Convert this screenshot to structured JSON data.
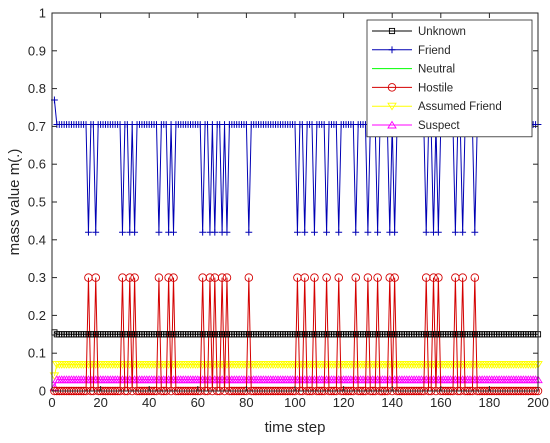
{
  "chart_data": {
    "type": "line",
    "title": "",
    "xlabel": "time step",
    "ylabel": "mass value m(.)",
    "xlim": [
      0,
      200
    ],
    "ylim": [
      0,
      1
    ],
    "xticks": [
      0,
      20,
      40,
      60,
      80,
      100,
      120,
      140,
      160,
      180,
      200
    ],
    "yticks": [
      0,
      0.1,
      0.2,
      0.3,
      0.4,
      0.5,
      0.6,
      0.7,
      0.8,
      0.9,
      1
    ],
    "xtick_labels": [
      "0",
      "20",
      "40",
      "60",
      "80",
      "100",
      "120",
      "140",
      "160",
      "180",
      "200"
    ],
    "ytick_labels": [
      "0",
      "0.1",
      "0.2",
      "0.3",
      "0.4",
      "0.5",
      "0.6",
      "0.7",
      "0.8",
      "0.9",
      "1"
    ],
    "grid": false,
    "legend_position": "top-right",
    "x_range": [
      1,
      200
    ],
    "dip_steps": [
      15,
      18,
      29,
      32,
      34,
      44,
      48,
      50,
      62,
      65,
      67,
      70,
      72,
      81,
      101,
      104,
      108,
      113,
      118,
      125,
      130,
      134,
      139,
      141,
      154,
      157,
      159,
      166,
      169,
      174
    ],
    "series": [
      {
        "name": "Unknown",
        "color": "#000000",
        "marker": "square",
        "initial": 0.155,
        "steady": 0.15,
        "dip": 0.15
      },
      {
        "name": "Friend",
        "color": "#0000b4",
        "marker": "plus",
        "initial": 0.77,
        "steady": 0.705,
        "dip": 0.42
      },
      {
        "name": "Neutral",
        "color": "#00ff00",
        "marker": "none",
        "initial": 0.0,
        "steady": 0.0,
        "dip": 0.0
      },
      {
        "name": "Hostile",
        "color": "#d40000",
        "marker": "circle",
        "initial": 0.0,
        "steady": 0.0,
        "dip": 0.3
      },
      {
        "name": "Assumed Friend",
        "color": "#ffff00",
        "marker": "triangle-down",
        "initial": 0.04,
        "steady": 0.07,
        "dip": 0.07
      },
      {
        "name": "Suspect",
        "color": "#ff00ff",
        "marker": "triangle-up",
        "initial": 0.01,
        "steady": 0.03,
        "dip": 0.03
      }
    ]
  }
}
